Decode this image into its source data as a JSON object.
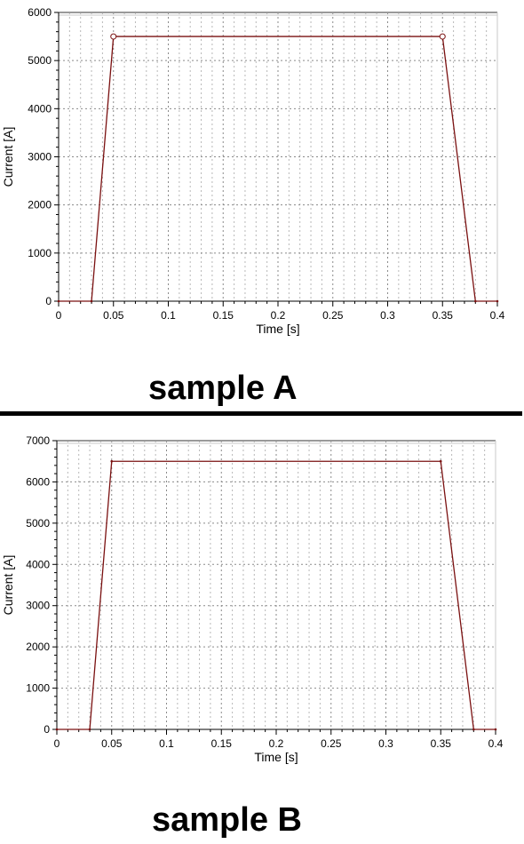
{
  "chart_data": [
    {
      "type": "line",
      "caption": "sample A",
      "xlabel": "Time [s]",
      "ylabel": "Current [A]",
      "xlim": [
        0,
        0.4
      ],
      "ylim": [
        0,
        6000
      ],
      "x_ticks": [
        "0",
        "0.05",
        "0.1",
        "0.15",
        "0.2",
        "0.25",
        "0.3",
        "0.35",
        "0.4"
      ],
      "y_ticks": [
        "0",
        "1000",
        "2000",
        "3000",
        "4000",
        "5000",
        "6000"
      ],
      "grid": true,
      "line_color": "#7a1010",
      "series": [
        {
          "x": [
            0,
            0.03,
            0.05,
            0.35,
            0.38,
            0.4
          ],
          "y": [
            0,
            0,
            5500,
            5500,
            0,
            0
          ],
          "markers_at": [
            0.05,
            0.35
          ]
        }
      ]
    },
    {
      "type": "line",
      "caption": "sample B",
      "xlabel": "Time [s]",
      "ylabel": "Current [A]",
      "xlim": [
        0,
        0.4
      ],
      "ylim": [
        0,
        7000
      ],
      "x_ticks": [
        "0",
        "0.05",
        "0.1",
        "0.15",
        "0.2",
        "0.25",
        "0.3",
        "0.35",
        "0.4"
      ],
      "y_ticks": [
        "0",
        "1000",
        "2000",
        "3000",
        "4000",
        "5000",
        "6000",
        "7000"
      ],
      "grid": true,
      "line_color": "#7a1010",
      "series": [
        {
          "x": [
            0,
            0.03,
            0.05,
            0.35,
            0.38,
            0.4
          ],
          "y": [
            0,
            0,
            6500,
            6500,
            0,
            0
          ],
          "markers_at": []
        }
      ]
    }
  ]
}
